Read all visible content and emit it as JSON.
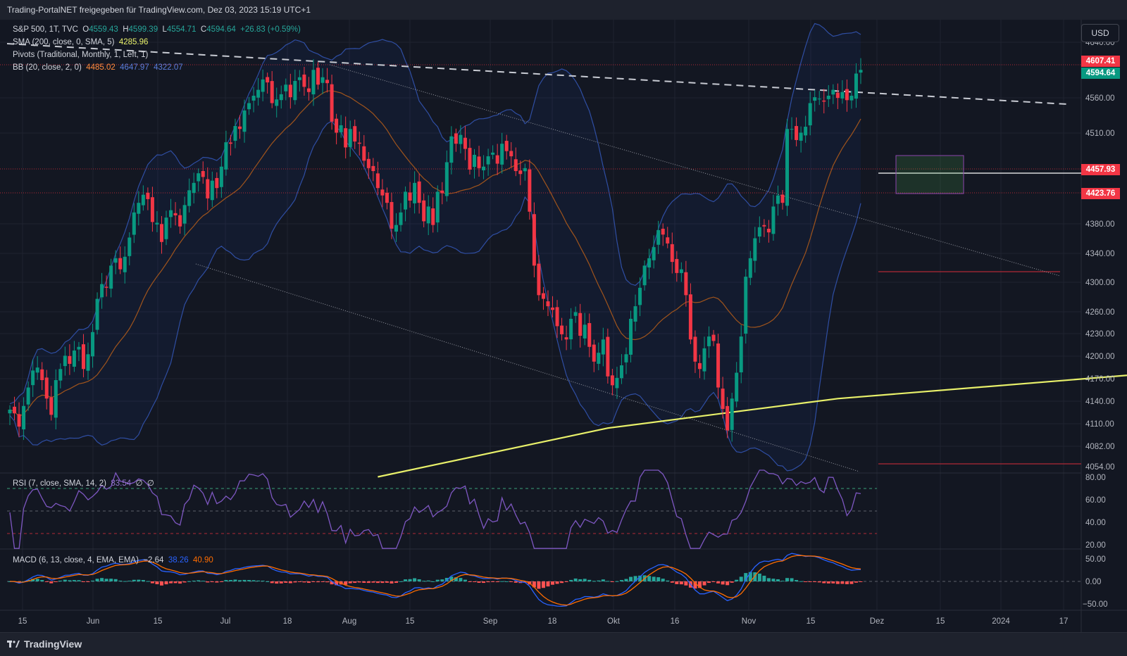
{
  "header": {
    "title": "Trading-PortalNET freigegeben für TradingView.com, Dez 03, 2023 15:19 UTC+1"
  },
  "footer": {
    "brand": "TradingView"
  },
  "currency_button": "USD",
  "legend": {
    "main": {
      "symbol": "S&P 500, 1T, TVC",
      "o_label": "O",
      "o": "4559.43",
      "h_label": "H",
      "h": "4599.39",
      "l_label": "L",
      "l": "4554.71",
      "c_label": "C",
      "c": "4594.64",
      "chg": "+26.83 (+0.59%)"
    },
    "sma": {
      "label": "SMA (200, close, 0, SMA, 5)",
      "value": "4285.96"
    },
    "pivots": {
      "label": "Pivots (Traditional, Monthly, 1, Left, 1)"
    },
    "bb": {
      "label": "BB (20, close, 2, 0)",
      "v1": "4485.02",
      "v2": "4647.97",
      "v3": "4322.07"
    },
    "rsi": {
      "label": "RSI (7, close, SMA, 14, 2)",
      "value": "83.54",
      "e1": "∅",
      "e2": "∅"
    },
    "macd": {
      "label": "MACD (6, 13, close, 4, EMA, EMA)",
      "v1": "−2.64",
      "v2": "38.26",
      "v3": "40.90"
    }
  },
  "price_axis": {
    "ticks": [
      "4640.00",
      "4560.00",
      "4510.00",
      "4380.00",
      "4340.00",
      "4300.00",
      "4260.00",
      "4230.00",
      "4200.00",
      "4170.00",
      "4140.00",
      "4110.00",
      "4082.00",
      "4054.00"
    ],
    "tags": [
      {
        "label": "4607.41",
        "value": 4607.41,
        "color": "#f23645"
      },
      {
        "label": "4594.64",
        "value": 4594.64,
        "color": "#089981"
      },
      {
        "label": "4457.93",
        "value": 4457.93,
        "color": "#f23645"
      },
      {
        "label": "4423.76",
        "value": 4423.76,
        "color": "#f23645"
      }
    ]
  },
  "rsi_axis": {
    "ticks": [
      "80.00",
      "60.00",
      "40.00",
      "20.00"
    ]
  },
  "macd_axis": {
    "ticks": [
      "50.00",
      "0.00",
      "−50.00"
    ]
  },
  "time_axis": {
    "labels": [
      "15",
      "Jun",
      "15",
      "Jul",
      "18",
      "Aug",
      "15",
      "Sep",
      "18",
      "Okt",
      "16",
      "Nov",
      "15",
      "Dez",
      "15",
      "2024",
      "17"
    ]
  },
  "chart_data": {
    "type": "candlestick",
    "symbol": "S&P 500",
    "timeframe": "1T",
    "last_ohlc": {
      "open": 4559.43,
      "high": 4599.39,
      "low": 4554.71,
      "close": 4594.64
    },
    "price_range": [
      4054,
      4660
    ],
    "indicators": [
      "SMA 200",
      "Pivots Monthly",
      "Bollinger Bands 20,2",
      "RSI 7",
      "MACD 6,13,4"
    ],
    "pivot_levels": [
      4607.41,
      4457.93,
      4423.76,
      4316,
      4058
    ],
    "sma200": [
      [
        80,
        4044
      ],
      [
        130,
        4110
      ],
      [
        180,
        4150
      ],
      [
        260,
        4190
      ],
      [
        300,
        4210
      ],
      [
        380,
        4234
      ],
      [
        420,
        4256
      ],
      [
        480,
        4272
      ],
      [
        520,
        4282
      ],
      [
        540,
        4286
      ]
    ],
    "candles_close": [
      4135,
      4130,
      4112,
      4140,
      4165,
      4188,
      4192,
      4175,
      4150,
      4128,
      4175,
      4190,
      4208,
      4197,
      4215,
      4220,
      4190,
      4210,
      4240,
      4285,
      4305,
      4300,
      4330,
      4340,
      4325,
      4342,
      4368,
      4402,
      4415,
      4426,
      4420,
      4389,
      4388,
      4362,
      4395,
      4405,
      4398,
      4383,
      4412,
      4432,
      4442,
      4455,
      4450,
      4421,
      4445,
      4435,
      4464,
      4497,
      4495,
      4519,
      4515,
      4540,
      4550,
      4560,
      4568,
      4582,
      4578,
      4550,
      4555,
      4562,
      4575,
      4558,
      4580,
      4585,
      4572,
      4565,
      4595,
      4575,
      4585,
      4577,
      4525,
      4510,
      4520,
      4490,
      4515,
      4498,
      4495,
      4472,
      4462,
      4458,
      4435,
      4425,
      4415,
      4380,
      4385,
      4402,
      4430,
      4418,
      4442,
      4415,
      4390,
      4410,
      4385,
      4430,
      4428,
      4470,
      4505,
      4495,
      4507,
      4488,
      4460,
      4480,
      4462,
      4464,
      4478,
      4483,
      4468,
      4495,
      4485,
      4478,
      4458,
      4454,
      4462,
      4403,
      4330,
      4290,
      4285,
      4275,
      4270,
      4248,
      4237,
      4230,
      4258,
      4267,
      4235,
      4250,
      4220,
      4200,
      4212,
      4230,
      4180,
      4168,
      4178,
      4195,
      4210,
      4258,
      4275,
      4300,
      4330,
      4340,
      4355,
      4378,
      4372,
      4360,
      4335,
      4320,
      4325,
      4290,
      4230,
      4200,
      4190,
      4218,
      4234,
      4228,
      4165,
      4136,
      4107,
      4150,
      4185,
      4234,
      4315,
      4340,
      4367,
      4382,
      4383,
      4375,
      4410,
      4425,
      4415,
      4515,
      4515,
      4500,
      4510,
      4518,
      4550,
      4558,
      4556,
      4552,
      4560,
      4568,
      4557,
      4565,
      4554,
      4560,
      4590,
      4595
    ],
    "rsi_last": 83.54,
    "macd_last": {
      "macd": -2.64,
      "signal": 38.26,
      "hist": 40.9
    }
  }
}
